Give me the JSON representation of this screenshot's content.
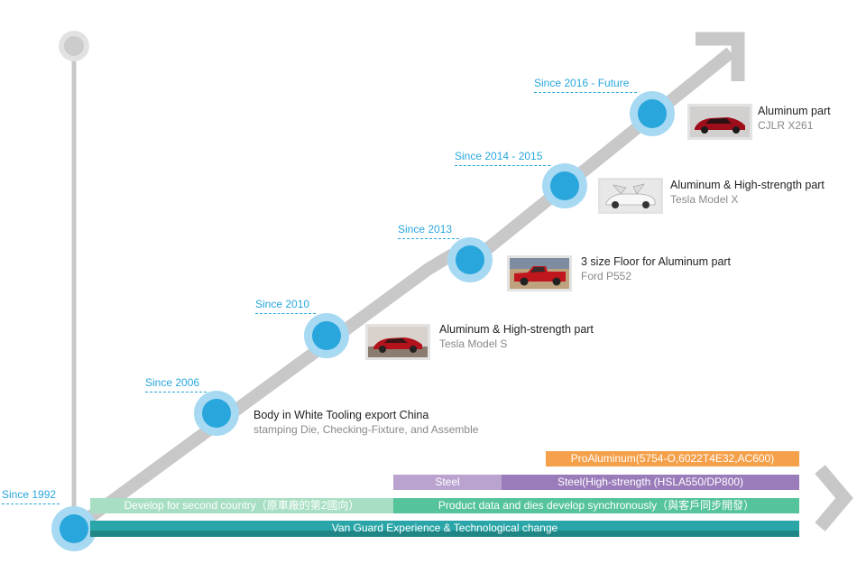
{
  "timeline": {
    "start_label": "Since 1992",
    "milestones": [
      {
        "since": "Since 2006",
        "title": "Body in White Tooling export China",
        "subtitle": "stamping Die, Checking-Fixture, and Assemble"
      },
      {
        "since": "Since 2010",
        "title": "Aluminum & High-strength part",
        "subtitle": "Tesla Model S",
        "thumb": "red-sedan-photo"
      },
      {
        "since": "Since 2013",
        "title": "3 size Floor for Aluminum part",
        "subtitle": "Ford P552",
        "thumb": "red-pickup-truck-photo"
      },
      {
        "since": "Since 2014 - 2015",
        "title": "Aluminum & High-strength part",
        "subtitle": "Tesla Model X",
        "thumb": "white-suv-falcon-doors-photo"
      },
      {
        "since": "Since 2016 - Future",
        "title": "Aluminum part",
        "subtitle": "CJLR X261",
        "thumb": "red-sports-sedan-photo"
      }
    ]
  },
  "bars": {
    "proaluminum": "ProAluminum(5754-O,6022T4E32,AC600)",
    "steel": "Steel",
    "steel_high": "Steel(High-strength (HSLA550/DP800)",
    "second_country": "Develop for second country（原車廠的第2國向）",
    "sync": "Product data and dies develop synchronously（與客戶同步開發）",
    "vanguard": "Van Guard Experience & Technological change"
  },
  "colors": {
    "accent": "#29a6dc",
    "node_ring": "#a7d9f3",
    "track": "#c8c8c8",
    "orange": "#f5a04a",
    "purple_light": "#bba3cf",
    "purple": "#9b7cbb",
    "green_light": "#a8dfc4",
    "green": "#55c49a",
    "teal": "#2aa6a8",
    "teal_dark": "#1f8585"
  }
}
